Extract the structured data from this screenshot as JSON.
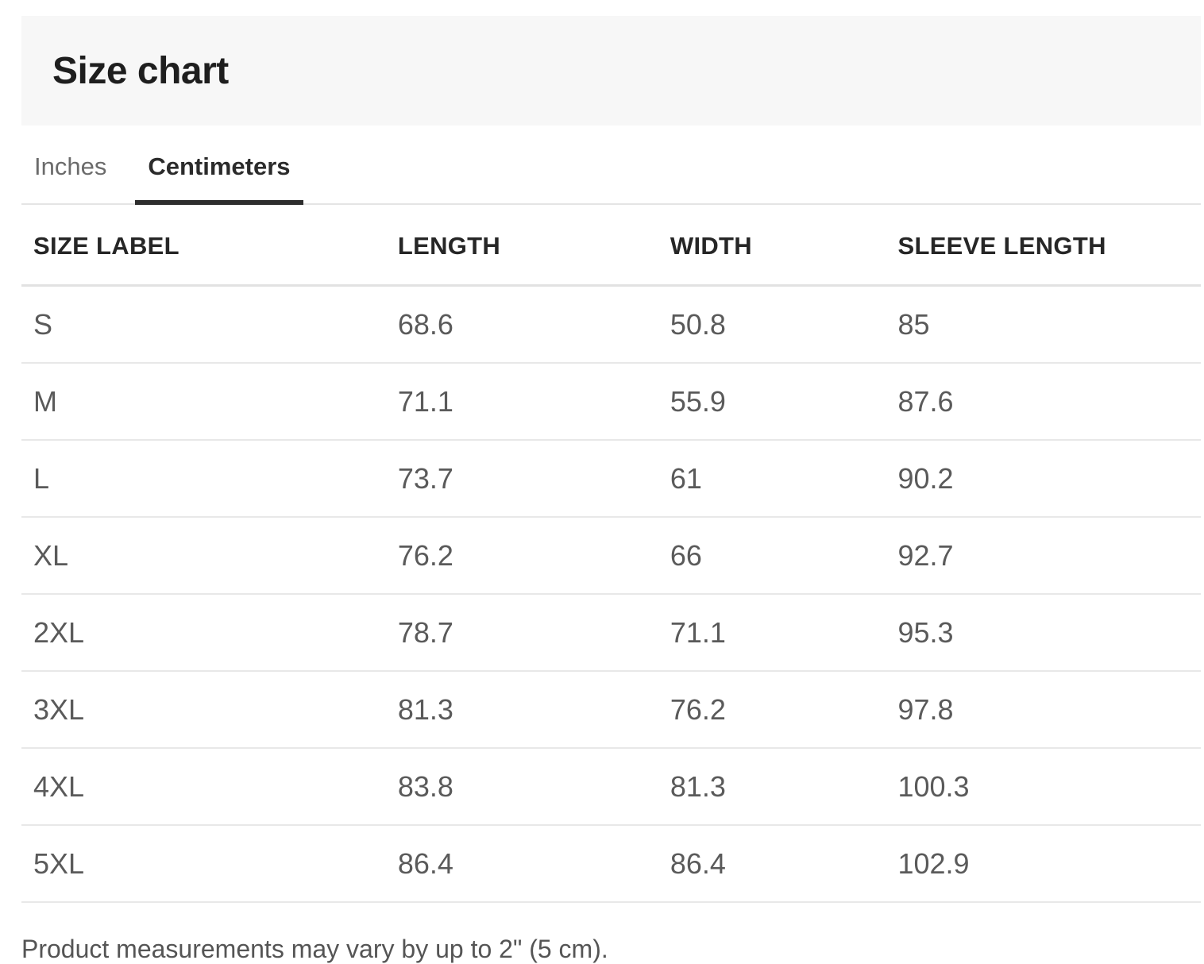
{
  "header": {
    "title": "Size chart"
  },
  "tabs": {
    "items": [
      {
        "label": "Inches",
        "active": false
      },
      {
        "label": "Centimeters",
        "active": true
      }
    ]
  },
  "table": {
    "columns": [
      "SIZE LABEL",
      "LENGTH",
      "WIDTH",
      "SLEEVE LENGTH"
    ],
    "rows": [
      {
        "size": "S",
        "length": "68.6",
        "width": "50.8",
        "sleeve_length": "85"
      },
      {
        "size": "M",
        "length": "71.1",
        "width": "55.9",
        "sleeve_length": "87.6"
      },
      {
        "size": "L",
        "length": "73.7",
        "width": "61",
        "sleeve_length": "90.2"
      },
      {
        "size": "XL",
        "length": "76.2",
        "width": "66",
        "sleeve_length": "92.7"
      },
      {
        "size": "2XL",
        "length": "78.7",
        "width": "71.1",
        "sleeve_length": "95.3"
      },
      {
        "size": "3XL",
        "length": "81.3",
        "width": "76.2",
        "sleeve_length": "97.8"
      },
      {
        "size": "4XL",
        "length": "83.8",
        "width": "81.3",
        "sleeve_length": "100.3"
      },
      {
        "size": "5XL",
        "length": "86.4",
        "width": "86.4",
        "sleeve_length": "102.9"
      }
    ]
  },
  "footer": {
    "note": "Product measurements may vary by up to 2\" (5 cm)."
  },
  "colors": {
    "header_band_bg": "#f7f7f7",
    "title_text": "#1e1e1e",
    "tab_inactive_text": "#6b6b6b",
    "tab_active_text": "#2b2b2b",
    "tab_active_underline": "#2d2d2d",
    "tab_row_border": "#e4e4e4",
    "table_header_text": "#262626",
    "table_header_border": "#e2e2e2",
    "table_cell_text": "#5a5a5a",
    "table_row_border": "#e8e8e8",
    "note_text": "#555555"
  }
}
